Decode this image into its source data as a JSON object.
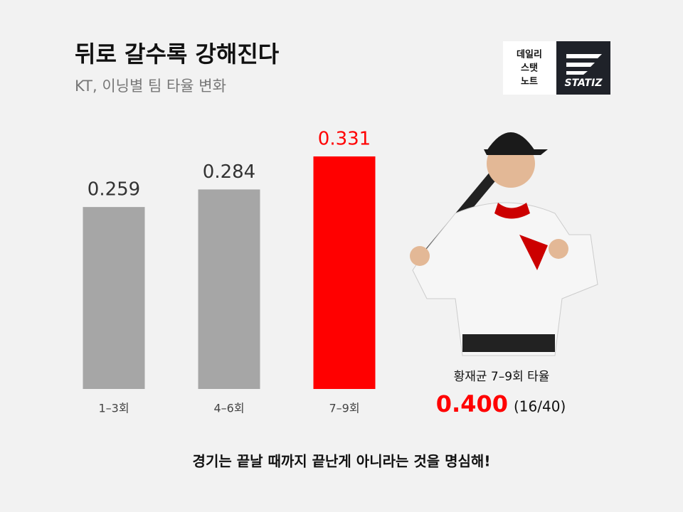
{
  "chart_data": {
    "type": "bar",
    "title": "뒤로 갈수록 강해진다",
    "subtitle": "KT, 이닝별 팀 타율 변화",
    "categories": [
      "1–3회",
      "4–6회",
      "7–9회"
    ],
    "values": [
      0.259,
      0.284,
      0.331
    ],
    "colors": [
      "#a6a6a6",
      "#a6a6a6",
      "#ff0000"
    ]
  },
  "logo": {
    "lines": [
      "데일리",
      "스탯",
      "노트"
    ],
    "brand": "STATIZ"
  },
  "player": {
    "caption": "황재균 7–9회 타율",
    "stat": "0.400",
    "detail": "(16/40)"
  },
  "footer": "경기는 끝날 때까지 끝난게 아니라는 것을 명심해!"
}
